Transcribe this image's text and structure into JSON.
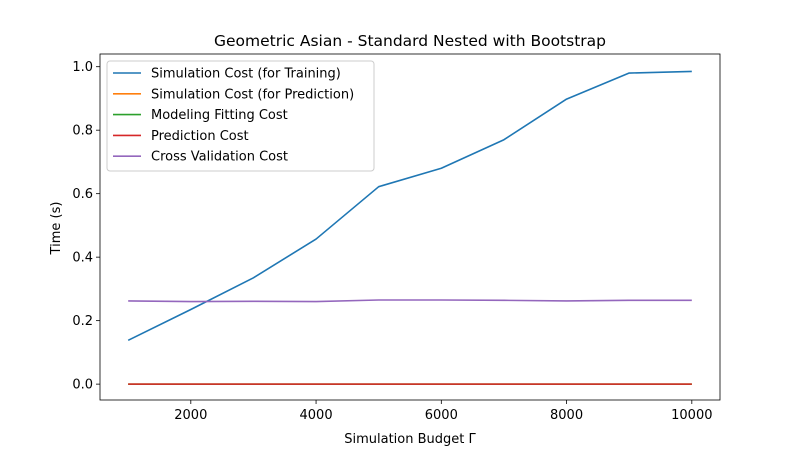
{
  "chart_data": {
    "type": "line",
    "title": "Geometric Asian - Standard Nested with Bootstrap",
    "xlabel": "Simulation Budget Γ",
    "ylabel": "Time (s)",
    "xlim": [
      550,
      10450
    ],
    "ylim": [
      -0.05,
      1.04
    ],
    "x": [
      1000,
      2000,
      3000,
      4000,
      5000,
      6000,
      7000,
      8000,
      9000,
      10000
    ],
    "xticks": [
      2000,
      4000,
      6000,
      8000,
      10000
    ],
    "yticks": [
      0.0,
      0.2,
      0.4,
      0.6,
      0.8,
      1.0
    ],
    "xtick_labels": [
      "2000",
      "4000",
      "6000",
      "8000",
      "10000"
    ],
    "ytick_labels": [
      "0.0",
      "0.2",
      "0.4",
      "0.6",
      "0.8",
      "1.0"
    ],
    "grid": false,
    "legend_position": "upper-left",
    "series": [
      {
        "name": "Simulation Cost (for Training)",
        "color": "#1f77b4",
        "values": [
          0.138,
          0.235,
          0.335,
          0.457,
          0.622,
          0.68,
          0.77,
          0.898,
          0.98,
          0.985
        ]
      },
      {
        "name": "Simulation Cost (for Prediction)",
        "color": "#ff7f0e",
        "values": [
          0.0,
          0.0,
          0.0,
          0.0,
          0.0,
          0.0,
          0.0,
          0.0,
          0.0,
          0.0
        ]
      },
      {
        "name": "Modeling Fitting Cost",
        "color": "#2ca02c",
        "values": [
          0.0,
          0.0,
          0.0,
          0.0,
          0.0,
          0.0,
          0.0,
          0.0,
          0.0,
          0.0
        ]
      },
      {
        "name": "Prediction Cost",
        "color": "#d62728",
        "values": [
          0.0,
          0.0,
          0.0,
          0.0,
          0.0,
          0.0,
          0.0,
          0.0,
          0.0,
          0.0
        ]
      },
      {
        "name": "Cross Validation Cost",
        "color": "#9467bd",
        "values": [
          0.262,
          0.26,
          0.261,
          0.26,
          0.265,
          0.265,
          0.264,
          0.262,
          0.264,
          0.264
        ]
      }
    ]
  }
}
